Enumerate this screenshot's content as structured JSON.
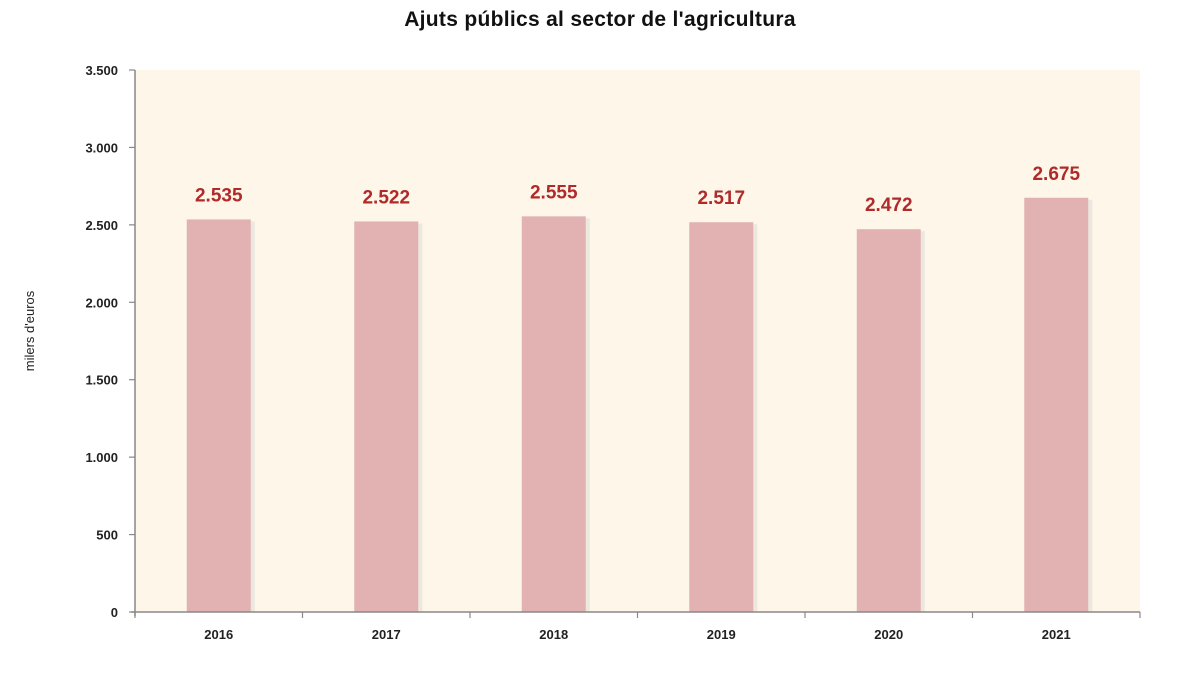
{
  "chart_data": {
    "type": "bar",
    "title": "Ajuts públics  al sector de l'agricultura",
    "xlabel": "",
    "ylabel": "milers d'euros",
    "categories": [
      "2016",
      "2017",
      "2018",
      "2019",
      "2020",
      "2021"
    ],
    "values": [
      2535,
      2522,
      2555,
      2517,
      2472,
      2675
    ],
    "value_labels": [
      "2.535",
      "2.522",
      "2.555",
      "2.517",
      "2.472",
      "2.675"
    ],
    "ylim": [
      0,
      3500
    ],
    "yticks": [
      0,
      500,
      1000,
      1500,
      2000,
      2500,
      3000,
      3500
    ],
    "ytick_labels": [
      "0",
      "500",
      "1.000",
      "1.500",
      "2.000",
      "2.500",
      "3.000",
      "3.500"
    ],
    "grid": false,
    "legend": "none",
    "colors": {
      "plot_background": "#fdf6e9",
      "bar_fill": "#e2b2b2",
      "bar_shadow": "#ece7df",
      "data_label": "#b02a2a",
      "axis": "#888888"
    }
  }
}
